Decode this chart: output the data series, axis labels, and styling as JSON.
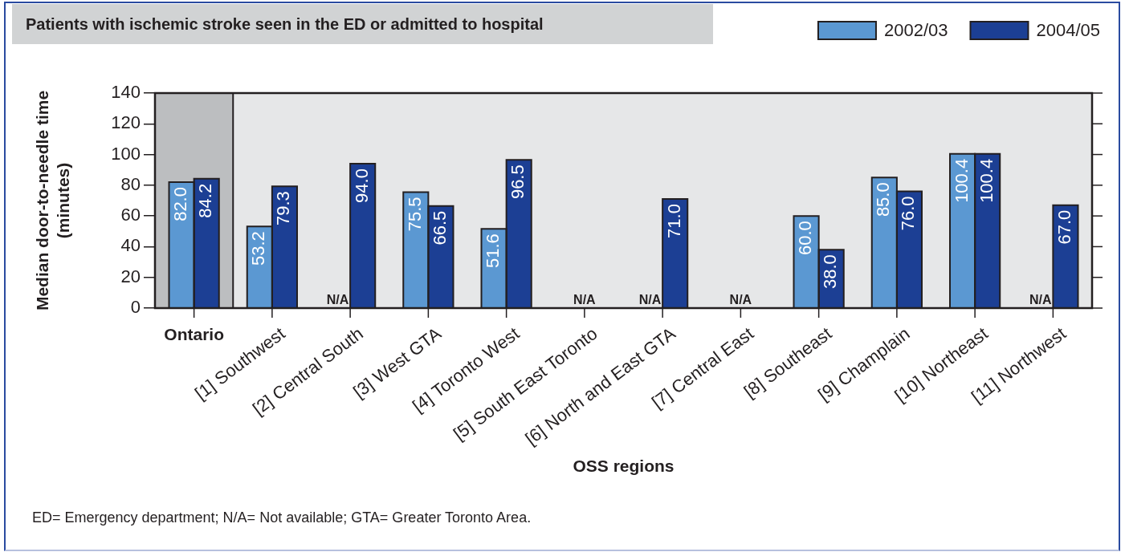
{
  "chart_data": {
    "type": "bar",
    "title": "Patients with ischemic stroke seen in the ED or admitted to hospital",
    "xlabel": "OSS regions",
    "ylabel": "Median door-to-needle time (minutes)",
    "categories": [
      "Ontario",
      "[1] Southwest",
      "[2] Central South",
      "[3] West GTA",
      "[4] Toronto West",
      "[5] South East Toronto",
      "[6] North and East GTA",
      "[7] Central East",
      "[8] Southeast",
      "[9] Champlain",
      "[10] Northeast",
      "[11] Northwest"
    ],
    "series": [
      {
        "name": "2002/03",
        "color": "#5b98d2",
        "values": [
          82.0,
          53.2,
          null,
          75.5,
          51.6,
          null,
          null,
          null,
          60.0,
          85.0,
          100.4,
          null
        ],
        "value_labels": [
          "82.0",
          "53.2",
          "N/A",
          "75.5",
          "51.6",
          "N/A",
          "N/A",
          "N/A",
          "60.0",
          "85.0",
          "100.4",
          "N/A"
        ]
      },
      {
        "name": "2004/05",
        "color": "#1c3f94",
        "values": [
          84.2,
          79.3,
          94.0,
          66.5,
          96.5,
          null,
          71.0,
          null,
          38.0,
          76.0,
          100.4,
          67.0
        ],
        "value_labels": [
          "84.2",
          "79.3",
          "94.0",
          "66.5",
          "96.5",
          null,
          "71.0",
          null,
          "38.0",
          "76.0",
          "100.4",
          "67.0"
        ]
      }
    ],
    "ylim": [
      0,
      140
    ],
    "yticks": [
      0,
      20,
      40,
      60,
      80,
      100,
      120,
      140
    ],
    "grid": false,
    "legend": "top right",
    "bands": [
      {
        "axis": "x",
        "from": "Ontario",
        "to": "Ontario",
        "color": "#bcbec0"
      }
    ],
    "annotations": [
      "ED= Emergency department; N/A= Not available; GTA= Greater Toronto Area."
    ]
  }
}
